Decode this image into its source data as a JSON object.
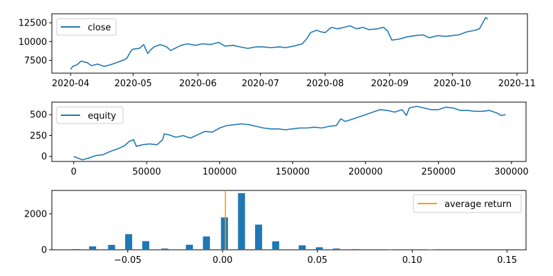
{
  "chart_data": [
    {
      "type": "line",
      "series": [
        {
          "name": "close",
          "color": "#1f77b4"
        }
      ],
      "x_ticks": [
        "2020-04",
        "2020-05",
        "2020-06",
        "2020-07",
        "2020-08",
        "2020-09",
        "2020-10",
        "2020-11"
      ],
      "x_tick_values": [
        0,
        30,
        61,
        91,
        122,
        153,
        183,
        214
      ],
      "xlim": [
        -9,
        219
      ],
      "y_ticks": [
        7500,
        10000,
        12500
      ],
      "y_tick_labels": [
        "7500",
        "10000",
        "12500"
      ],
      "ylim": [
        5800,
        13700
      ],
      "points": [
        [
          0,
          6300
        ],
        [
          1,
          6700
        ],
        [
          3,
          6900
        ],
        [
          5,
          7400
        ],
        [
          8,
          7200
        ],
        [
          10,
          6800
        ],
        [
          13,
          7000
        ],
        [
          16,
          6700
        ],
        [
          19,
          6900
        ],
        [
          22,
          7200
        ],
        [
          26,
          7600
        ],
        [
          27,
          7800
        ],
        [
          29,
          8800
        ],
        [
          30,
          9000
        ],
        [
          33,
          9100
        ],
        [
          35,
          9600
        ],
        [
          37,
          8400
        ],
        [
          38,
          8800
        ],
        [
          40,
          9300
        ],
        [
          43,
          9600
        ],
        [
          46,
          9300
        ],
        [
          48,
          8800
        ],
        [
          50,
          9100
        ],
        [
          53,
          9500
        ],
        [
          56,
          9700
        ],
        [
          60,
          9500
        ],
        [
          63,
          9700
        ],
        [
          67,
          9600
        ],
        [
          71,
          9900
        ],
        [
          74,
          9400
        ],
        [
          78,
          9500
        ],
        [
          81,
          9300
        ],
        [
          85,
          9100
        ],
        [
          89,
          9300
        ],
        [
          92,
          9300
        ],
        [
          96,
          9200
        ],
        [
          100,
          9300
        ],
        [
          103,
          9200
        ],
        [
          107,
          9400
        ],
        [
          111,
          9700
        ],
        [
          113,
          10300
        ],
        [
          115,
          11200
        ],
        [
          118,
          11500
        ],
        [
          120,
          11300
        ],
        [
          122,
          11200
        ],
        [
          125,
          11900
        ],
        [
          128,
          11700
        ],
        [
          131,
          11900
        ],
        [
          134,
          12100
        ],
        [
          137,
          11700
        ],
        [
          140,
          11900
        ],
        [
          143,
          11600
        ],
        [
          147,
          11700
        ],
        [
          150,
          11900
        ],
        [
          152,
          11400
        ],
        [
          154,
          10200
        ],
        [
          157,
          10300
        ],
        [
          161,
          10600
        ],
        [
          165,
          10800
        ],
        [
          169,
          10900
        ],
        [
          172,
          10500
        ],
        [
          176,
          10800
        ],
        [
          180,
          10700
        ],
        [
          183,
          10800
        ],
        [
          186,
          10900
        ],
        [
          190,
          11300
        ],
        [
          194,
          11500
        ],
        [
          196,
          11700
        ],
        [
          198,
          12700
        ],
        [
          199,
          13200
        ],
        [
          200,
          13000
        ]
      ],
      "legend": [
        "close"
      ],
      "legend_position": "upper-left"
    },
    {
      "type": "line",
      "series": [
        {
          "name": "equity",
          "color": "#1f77b4"
        }
      ],
      "x_ticks": [
        "0",
        "50000",
        "100000",
        "150000",
        "200000",
        "250000",
        "300000"
      ],
      "x_tick_values": [
        0,
        50000,
        100000,
        150000,
        200000,
        250000,
        300000
      ],
      "xlim": [
        -15000,
        310000
      ],
      "y_ticks": [
        0,
        250,
        500
      ],
      "y_tick_labels": [
        "0",
        "250",
        "500"
      ],
      "ylim": [
        -60,
        650
      ],
      "points": [
        [
          0,
          0
        ],
        [
          3000,
          -20
        ],
        [
          6000,
          -40
        ],
        [
          10000,
          -20
        ],
        [
          15000,
          10
        ],
        [
          20000,
          20
        ],
        [
          25000,
          60
        ],
        [
          30000,
          90
        ],
        [
          35000,
          130
        ],
        [
          38000,
          180
        ],
        [
          41000,
          200
        ],
        [
          43000,
          120
        ],
        [
          47000,
          140
        ],
        [
          52000,
          150
        ],
        [
          57000,
          140
        ],
        [
          61000,
          200
        ],
        [
          62000,
          270
        ],
        [
          65000,
          260
        ],
        [
          70000,
          230
        ],
        [
          75000,
          250
        ],
        [
          80000,
          220
        ],
        [
          85000,
          260
        ],
        [
          90000,
          300
        ],
        [
          95000,
          290
        ],
        [
          100000,
          340
        ],
        [
          105000,
          370
        ],
        [
          110000,
          380
        ],
        [
          115000,
          390
        ],
        [
          120000,
          380
        ],
        [
          125000,
          360
        ],
        [
          130000,
          340
        ],
        [
          135000,
          330
        ],
        [
          140000,
          330
        ],
        [
          145000,
          320
        ],
        [
          150000,
          330
        ],
        [
          155000,
          340
        ],
        [
          160000,
          340
        ],
        [
          165000,
          350
        ],
        [
          170000,
          340
        ],
        [
          175000,
          360
        ],
        [
          180000,
          370
        ],
        [
          183000,
          450
        ],
        [
          186000,
          420
        ],
        [
          190000,
          440
        ],
        [
          195000,
          470
        ],
        [
          200000,
          500
        ],
        [
          205000,
          530
        ],
        [
          210000,
          560
        ],
        [
          215000,
          550
        ],
        [
          220000,
          530
        ],
        [
          225000,
          560
        ],
        [
          228000,
          490
        ],
        [
          230000,
          580
        ],
        [
          235000,
          600
        ],
        [
          240000,
          580
        ],
        [
          245000,
          560
        ],
        [
          250000,
          560
        ],
        [
          255000,
          590
        ],
        [
          260000,
          580
        ],
        [
          265000,
          550
        ],
        [
          270000,
          550
        ],
        [
          275000,
          540
        ],
        [
          280000,
          540
        ],
        [
          285000,
          550
        ],
        [
          290000,
          520
        ],
        [
          293000,
          490
        ],
        [
          296000,
          500
        ]
      ],
      "legend": [
        "equity"
      ],
      "legend_position": "upper-left"
    },
    {
      "type": "bar",
      "x_ticks": [
        "−0.05",
        "0.00",
        "0.05",
        "0.10",
        "0.15"
      ],
      "x_tick_values": [
        -0.05,
        0.0,
        0.05,
        0.1,
        0.15
      ],
      "xlim": [
        -0.09,
        0.16
      ],
      "y_ticks": [
        0,
        2000
      ],
      "y_tick_labels": [
        "0",
        "2000"
      ],
      "ylim": [
        0,
        3300
      ],
      "bar_width": 0.0037,
      "bins": [
        {
          "x": -0.0775,
          "value": 40
        },
        {
          "x": -0.0685,
          "value": 190
        },
        {
          "x": -0.0585,
          "value": 270
        },
        {
          "x": -0.0495,
          "value": 870
        },
        {
          "x": -0.0405,
          "value": 480
        },
        {
          "x": -0.0305,
          "value": 70
        },
        {
          "x": -0.0175,
          "value": 280
        },
        {
          "x": -0.0085,
          "value": 740
        },
        {
          "x": 0.001,
          "value": 1800
        },
        {
          "x": 0.01,
          "value": 3150
        },
        {
          "x": 0.019,
          "value": 1400
        },
        {
          "x": 0.028,
          "value": 470
        },
        {
          "x": 0.042,
          "value": 250
        },
        {
          "x": 0.051,
          "value": 140
        },
        {
          "x": 0.06,
          "value": 70
        },
        {
          "x": 0.07,
          "value": 40
        },
        {
          "x": 0.079,
          "value": 30
        },
        {
          "x": 0.088,
          "value": 25
        },
        {
          "x": 0.101,
          "value": 30
        },
        {
          "x": 0.11,
          "value": 15
        }
      ],
      "average_return": 0.0015,
      "average_color": "#ff9900",
      "legend": [
        "average return"
      ],
      "legend_position": "upper-right"
    }
  ]
}
